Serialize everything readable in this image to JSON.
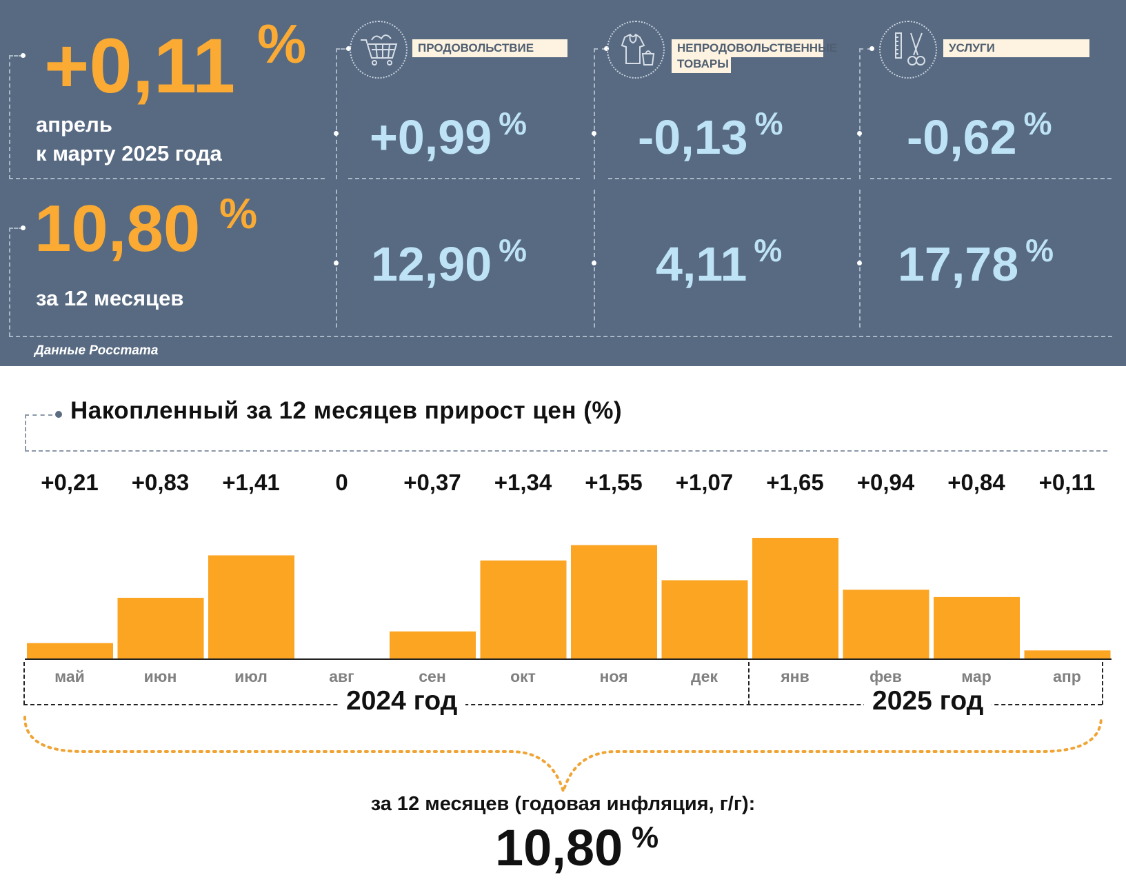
{
  "summary": {
    "monthly_value": "+0,11",
    "monthly_unit": "%",
    "monthly_caption_line1": "апрель",
    "monthly_caption_line2": "к марту 2025 года",
    "annual_value": "10,80",
    "annual_unit": "%",
    "annual_caption": "за 12 месяцев",
    "source": "Данные Росстата"
  },
  "categories": [
    {
      "label": "ПРОДОВОЛЬСТВИЕ",
      "icon": "shopping-cart-icon",
      "monthly": "+0,99",
      "annual": "12,90",
      "unit": "%"
    },
    {
      "label_line1": "НЕПРОДОВОЛЬСТВЕННЫЕ",
      "label_line2": "ТОВАРЫ",
      "icon": "clothing-icon",
      "monthly": "-0,13",
      "annual": "4,11",
      "unit": "%"
    },
    {
      "label": "УСЛУГИ",
      "icon": "scissors-comb-icon",
      "monthly": "-0,62",
      "annual": "17,78",
      "unit": "%"
    }
  ],
  "colors": {
    "panel": "#576a82",
    "accent": "#fbab33",
    "value_blue": "#bfe3f6",
    "bar": "#fba523"
  },
  "chart_data": {
    "type": "bar",
    "title": "Накопленный за 12 месяцев прирост цен (%)",
    "categories": [
      "май",
      "июн",
      "июл",
      "авг",
      "сен",
      "окт",
      "ноя",
      "дек",
      "янв",
      "фев",
      "мар",
      "апр"
    ],
    "values": [
      0.21,
      0.83,
      1.41,
      0,
      0.37,
      1.34,
      1.55,
      1.07,
      1.65,
      0.94,
      0.84,
      0.11
    ],
    "value_labels": [
      "+0,21",
      "+0,83",
      "+1,41",
      "0",
      "+0,37",
      "+1,34",
      "+1,55",
      "+1,07",
      "+1,65",
      "+0,94",
      "+0,84",
      "+0,11"
    ],
    "year_groups": [
      {
        "label": "2024 год",
        "months": 8
      },
      {
        "label": "2025 год",
        "months": 4
      }
    ],
    "annual_caption": "за 12 месяцев (годовая инфляция, г/г):",
    "annual_value": "10,80",
    "annual_unit": "%"
  }
}
